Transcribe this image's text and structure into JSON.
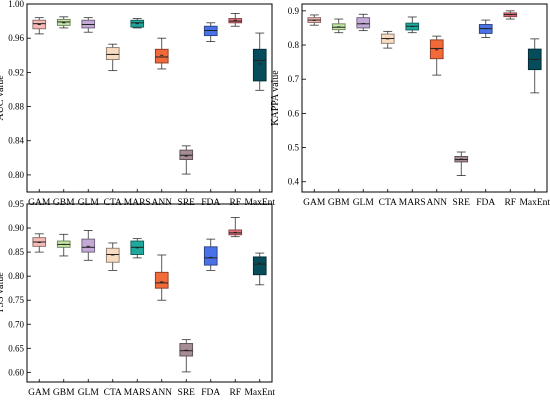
{
  "chart_data": [
    {
      "type": "box",
      "ylabel": "AUC value",
      "ylim": [
        0.78,
        1.0
      ],
      "yticks": [
        "0.80",
        "0.84",
        "0.88",
        "0.92",
        "0.96",
        "1.00"
      ],
      "categories": [
        "GAM",
        "GBM",
        "GLM",
        "CTA",
        "MARS",
        "ANN",
        "SRE",
        "FDA",
        "RF",
        "MaxEnt"
      ],
      "boxes": [
        {
          "min": 0.965,
          "q1": 0.971,
          "median": 0.977,
          "mean": 0.976,
          "q3": 0.981,
          "max": 0.984
        },
        {
          "min": 0.972,
          "q1": 0.975,
          "median": 0.979,
          "mean": 0.978,
          "q3": 0.982,
          "max": 0.985
        },
        {
          "min": 0.967,
          "q1": 0.972,
          "median": 0.976,
          "mean": 0.976,
          "q3": 0.981,
          "max": 0.984
        },
        {
          "min": 0.922,
          "q1": 0.935,
          "median": 0.941,
          "mean": 0.941,
          "q3": 0.949,
          "max": 0.953
        },
        {
          "min": 0.972,
          "q1": 0.973,
          "median": 0.978,
          "mean": 0.977,
          "q3": 0.981,
          "max": 0.983
        },
        {
          "min": 0.924,
          "q1": 0.931,
          "median": 0.938,
          "mean": 0.94,
          "q3": 0.947,
          "max": 0.96
        },
        {
          "min": 0.801,
          "q1": 0.818,
          "median": 0.823,
          "mean": 0.822,
          "q3": 0.829,
          "max": 0.834
        },
        {
          "min": 0.956,
          "q1": 0.963,
          "median": 0.969,
          "mean": 0.969,
          "q3": 0.974,
          "max": 0.978
        },
        {
          "min": 0.974,
          "q1": 0.978,
          "median": 0.98,
          "mean": 0.981,
          "q3": 0.983,
          "max": 0.989
        },
        {
          "min": 0.899,
          "q1": 0.91,
          "median": 0.934,
          "mean": 0.93,
          "q3": 0.947,
          "max": 0.966
        }
      ]
    },
    {
      "type": "box",
      "ylabel": "KAPPA value",
      "ylim": [
        0.37,
        0.92
      ],
      "yticks": [
        "0.4",
        "0.5",
        "0.6",
        "0.7",
        "0.8",
        "0.9"
      ],
      "categories": [
        "GAM",
        "GBM",
        "GLM",
        "CTA",
        "MARS",
        "ANN",
        "SRE",
        "FDA",
        "RF",
        "MaxEnt"
      ],
      "boxes": [
        {
          "min": 0.858,
          "q1": 0.866,
          "median": 0.873,
          "mean": 0.872,
          "q3": 0.88,
          "max": 0.888
        },
        {
          "min": 0.836,
          "q1": 0.845,
          "median": 0.852,
          "mean": 0.853,
          "q3": 0.862,
          "max": 0.876
        },
        {
          "min": 0.842,
          "q1": 0.85,
          "median": 0.862,
          "mean": 0.863,
          "q3": 0.88,
          "max": 0.89
        },
        {
          "min": 0.791,
          "q1": 0.805,
          "median": 0.819,
          "mean": 0.818,
          "q3": 0.832,
          "max": 0.84
        },
        {
          "min": 0.836,
          "q1": 0.844,
          "median": 0.855,
          "mean": 0.854,
          "q3": 0.864,
          "max": 0.882
        },
        {
          "min": 0.712,
          "q1": 0.76,
          "median": 0.79,
          "mean": 0.786,
          "q3": 0.815,
          "max": 0.826
        },
        {
          "min": 0.418,
          "q1": 0.458,
          "median": 0.465,
          "mean": 0.466,
          "q3": 0.474,
          "max": 0.487
        },
        {
          "min": 0.822,
          "q1": 0.834,
          "median": 0.848,
          "mean": 0.848,
          "q3": 0.86,
          "max": 0.873
        },
        {
          "min": 0.876,
          "q1": 0.883,
          "median": 0.889,
          "mean": 0.889,
          "q3": 0.894,
          "max": 0.9
        },
        {
          "min": 0.66,
          "q1": 0.728,
          "median": 0.758,
          "mean": 0.757,
          "q3": 0.788,
          "max": 0.818
        }
      ]
    },
    {
      "type": "box",
      "ylabel": "TSS value",
      "ylim": [
        0.58,
        0.95
      ],
      "yticks": [
        "0.60",
        "0.65",
        "0.70",
        "0.75",
        "0.80",
        "0.85",
        "0.90",
        "0.95"
      ],
      "categories": [
        "GAM",
        "GBM",
        "GLM",
        "CTA",
        "MARS",
        "ANN",
        "SRE",
        "FDA",
        "RF",
        "MaxEnt"
      ],
      "boxes": [
        {
          "min": 0.85,
          "q1": 0.862,
          "median": 0.871,
          "mean": 0.87,
          "q3": 0.88,
          "max": 0.888
        },
        {
          "min": 0.842,
          "q1": 0.86,
          "median": 0.866,
          "mean": 0.866,
          "q3": 0.873,
          "max": 0.887
        },
        {
          "min": 0.833,
          "q1": 0.85,
          "median": 0.86,
          "mean": 0.862,
          "q3": 0.877,
          "max": 0.895
        },
        {
          "min": 0.812,
          "q1": 0.829,
          "median": 0.845,
          "mean": 0.844,
          "q3": 0.858,
          "max": 0.869
        },
        {
          "min": 0.838,
          "q1": 0.845,
          "median": 0.86,
          "mean": 0.859,
          "q3": 0.873,
          "max": 0.878
        },
        {
          "min": 0.75,
          "q1": 0.775,
          "median": 0.786,
          "mean": 0.788,
          "q3": 0.808,
          "max": 0.844
        },
        {
          "min": 0.601,
          "q1": 0.634,
          "median": 0.645,
          "mean": 0.646,
          "q3": 0.66,
          "max": 0.668
        },
        {
          "min": 0.812,
          "q1": 0.823,
          "median": 0.838,
          "mean": 0.839,
          "q3": 0.861,
          "max": 0.877
        },
        {
          "min": 0.882,
          "q1": 0.886,
          "median": 0.89,
          "mean": 0.891,
          "q3": 0.896,
          "max": 0.922
        },
        {
          "min": 0.782,
          "q1": 0.803,
          "median": 0.825,
          "mean": 0.827,
          "q3": 0.84,
          "max": 0.848
        }
      ]
    }
  ],
  "colors": {
    "GAM": "#f6b9b5",
    "GBM": "#c4e6a3",
    "GLM": "#c3a9d6",
    "CTA": "#f8dcc2",
    "MARS": "#1fa89c",
    "ANN": "#f26a3a",
    "SRE": "#a68c94",
    "FDA": "#4a72e6",
    "RF": "#e8737c",
    "MaxEnt": "#064c5a"
  }
}
